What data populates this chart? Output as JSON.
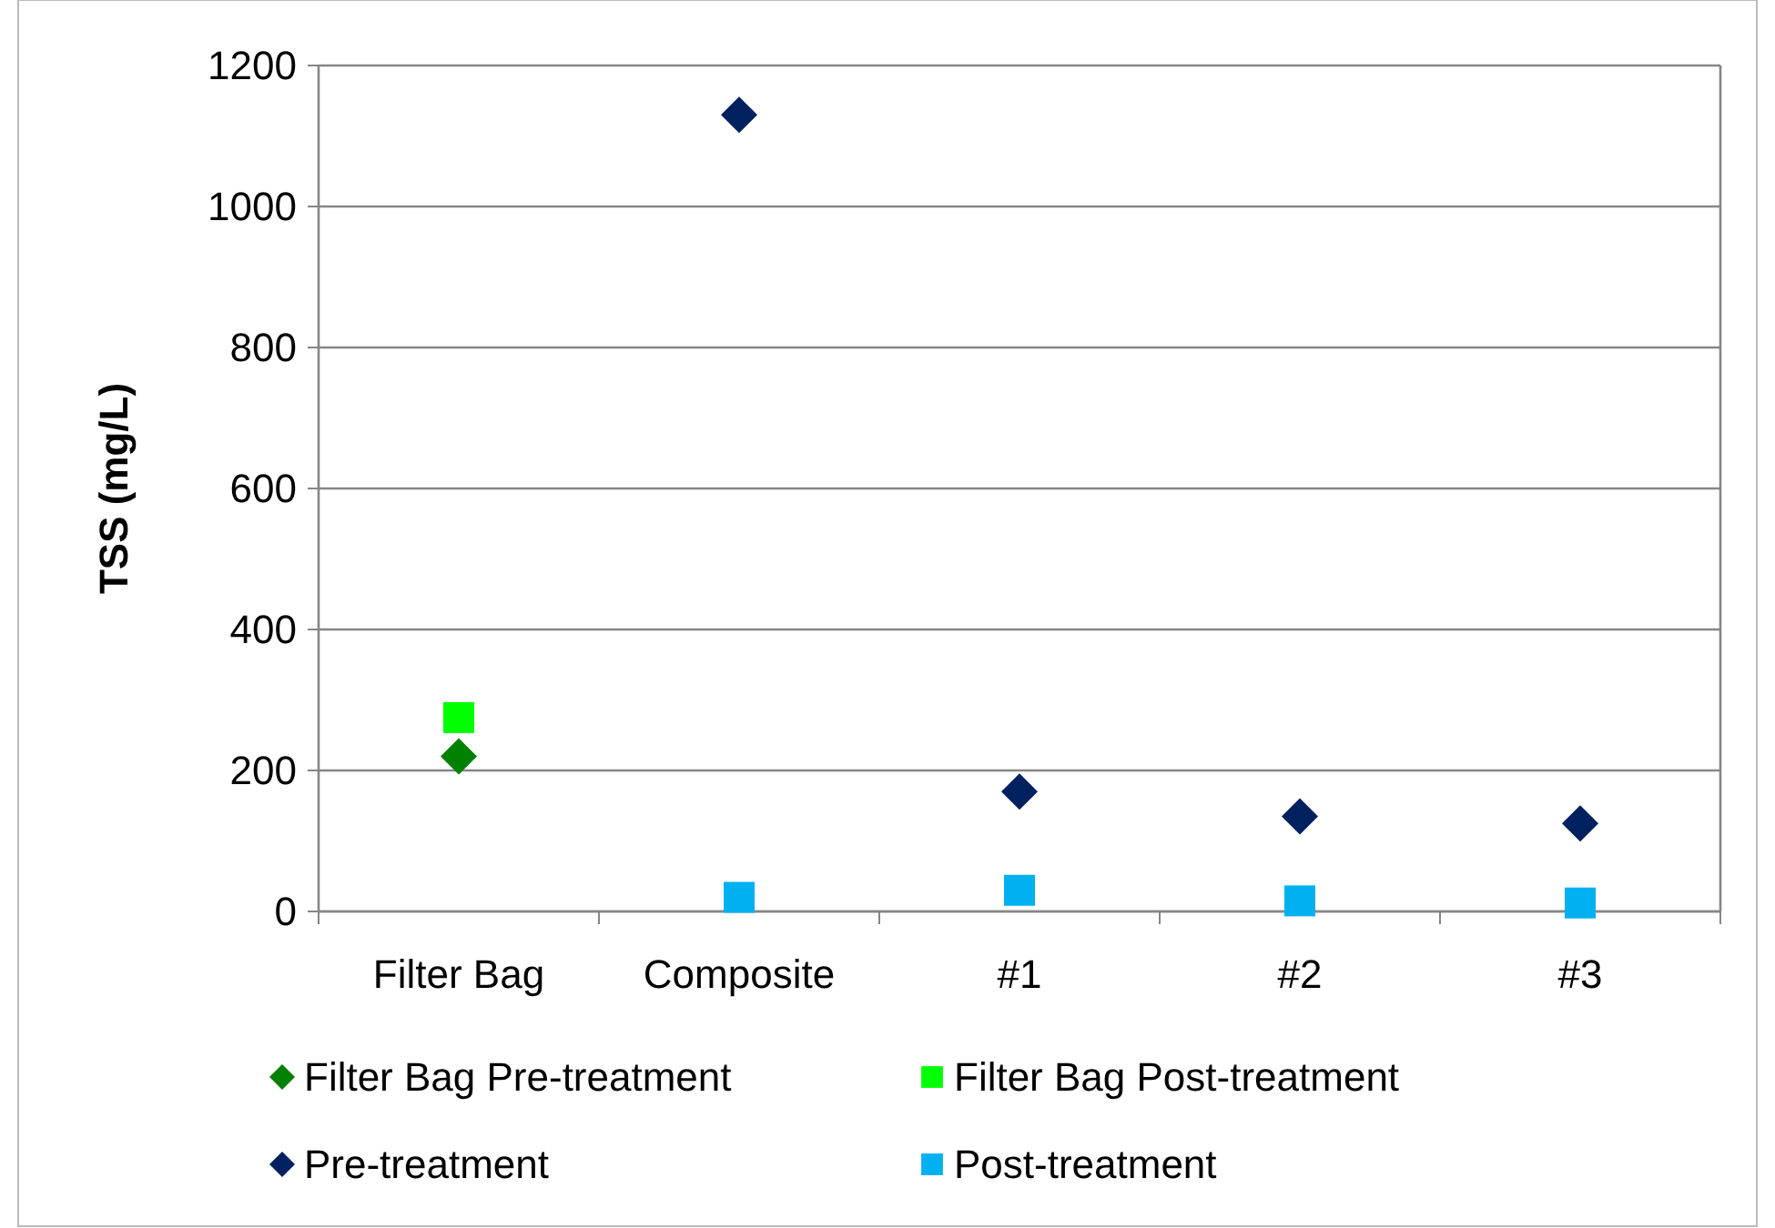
{
  "chart_data": {
    "type": "scatter",
    "ylabel": "TSS (mg/L)",
    "categories": [
      "Filter Bag",
      "Composite",
      "#1",
      "#2",
      "#3"
    ],
    "ylim": [
      0,
      1200
    ],
    "yticks": [
      0,
      200,
      400,
      600,
      800,
      1000,
      1200
    ],
    "grid": "y",
    "legend": "bottom",
    "series": [
      {
        "name": "Filter Bag Pre-treatment",
        "color": "#008000",
        "marker": "diamond",
        "values": [
          220,
          null,
          null,
          null,
          null
        ]
      },
      {
        "name": "Filter Bag Post-treatment",
        "color": "#00ff00",
        "marker": "square",
        "values": [
          275,
          null,
          null,
          null,
          null
        ]
      },
      {
        "name": "Pre-treatment",
        "color": "#002060",
        "marker": "diamond",
        "values": [
          null,
          1130,
          170,
          135,
          125
        ]
      },
      {
        "name": "Post-treatment",
        "color": "#00b0f0",
        "marker": "square",
        "values": [
          null,
          20,
          30,
          15,
          12
        ]
      }
    ]
  }
}
